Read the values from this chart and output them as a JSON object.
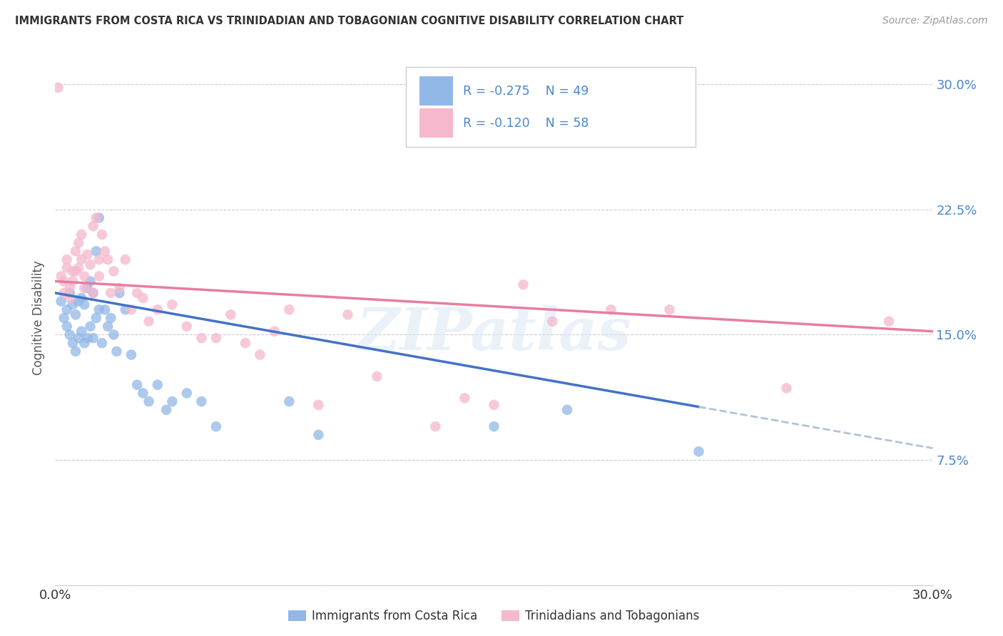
{
  "title": "IMMIGRANTS FROM COSTA RICA VS TRINIDADIAN AND TOBAGONIAN COGNITIVE DISABILITY CORRELATION CHART",
  "source": "Source: ZipAtlas.com",
  "ylabel": "Cognitive Disability",
  "y_ticks": [
    0.0,
    0.075,
    0.15,
    0.225,
    0.3
  ],
  "y_tick_labels": [
    "",
    "7.5%",
    "15.0%",
    "22.5%",
    "30.0%"
  ],
  "x_range": [
    0.0,
    0.3
  ],
  "y_range": [
    0.0,
    0.32
  ],
  "legend_blue_r": "R = -0.275",
  "legend_blue_n": "N = 49",
  "legend_pink_r": "R = -0.120",
  "legend_pink_n": "N = 58",
  "legend_label1": "Immigrants from Costa Rica",
  "legend_label2": "Trinidadians and Tobagonians",
  "blue_color": "#92b8e8",
  "pink_color": "#f5b8cc",
  "blue_line_color": "#4472c4",
  "pink_line_color": "#e87da0",
  "dash_color": "#b0c4d8",
  "watermark": "ZIPatlas",
  "blue_scatter_x": [
    0.002,
    0.003,
    0.004,
    0.004,
    0.005,
    0.005,
    0.006,
    0.006,
    0.007,
    0.007,
    0.008,
    0.008,
    0.009,
    0.009,
    0.01,
    0.01,
    0.011,
    0.011,
    0.012,
    0.012,
    0.013,
    0.013,
    0.014,
    0.014,
    0.015,
    0.015,
    0.016,
    0.017,
    0.018,
    0.019,
    0.02,
    0.021,
    0.022,
    0.024,
    0.026,
    0.028,
    0.03,
    0.032,
    0.035,
    0.038,
    0.04,
    0.045,
    0.05,
    0.055,
    0.08,
    0.09,
    0.15,
    0.175,
    0.22
  ],
  "blue_scatter_y": [
    0.17,
    0.16,
    0.165,
    0.155,
    0.175,
    0.15,
    0.168,
    0.145,
    0.162,
    0.14,
    0.17,
    0.148,
    0.172,
    0.152,
    0.168,
    0.145,
    0.178,
    0.148,
    0.182,
    0.155,
    0.175,
    0.148,
    0.2,
    0.16,
    0.22,
    0.165,
    0.145,
    0.165,
    0.155,
    0.16,
    0.15,
    0.14,
    0.175,
    0.165,
    0.138,
    0.12,
    0.115,
    0.11,
    0.12,
    0.105,
    0.11,
    0.115,
    0.11,
    0.095,
    0.11,
    0.09,
    0.095,
    0.105,
    0.08
  ],
  "pink_scatter_x": [
    0.001,
    0.002,
    0.003,
    0.003,
    0.004,
    0.004,
    0.005,
    0.005,
    0.006,
    0.006,
    0.007,
    0.007,
    0.008,
    0.008,
    0.009,
    0.009,
    0.01,
    0.01,
    0.011,
    0.012,
    0.013,
    0.013,
    0.014,
    0.015,
    0.015,
    0.016,
    0.017,
    0.018,
    0.019,
    0.02,
    0.022,
    0.024,
    0.026,
    0.028,
    0.03,
    0.032,
    0.035,
    0.04,
    0.045,
    0.05,
    0.055,
    0.06,
    0.065,
    0.07,
    0.075,
    0.08,
    0.09,
    0.1,
    0.11,
    0.13,
    0.14,
    0.15,
    0.16,
    0.17,
    0.19,
    0.21,
    0.25,
    0.285
  ],
  "pink_scatter_y": [
    0.298,
    0.185,
    0.175,
    0.182,
    0.19,
    0.195,
    0.178,
    0.172,
    0.188,
    0.182,
    0.2,
    0.188,
    0.205,
    0.19,
    0.21,
    0.195,
    0.185,
    0.178,
    0.198,
    0.192,
    0.175,
    0.215,
    0.22,
    0.185,
    0.195,
    0.21,
    0.2,
    0.195,
    0.175,
    0.188,
    0.178,
    0.195,
    0.165,
    0.175,
    0.172,
    0.158,
    0.165,
    0.168,
    0.155,
    0.148,
    0.148,
    0.162,
    0.145,
    0.138,
    0.152,
    0.165,
    0.108,
    0.162,
    0.125,
    0.095,
    0.112,
    0.108,
    0.18,
    0.158,
    0.165,
    0.165,
    0.118,
    0.158
  ],
  "blue_line_start_x": 0.0,
  "blue_line_end_solid_x": 0.22,
  "blue_line_end_x": 0.3,
  "blue_line_start_y": 0.175,
  "blue_line_end_y": 0.082,
  "pink_line_start_x": 0.0,
  "pink_line_end_x": 0.3,
  "pink_line_start_y": 0.182,
  "pink_line_end_y": 0.152
}
